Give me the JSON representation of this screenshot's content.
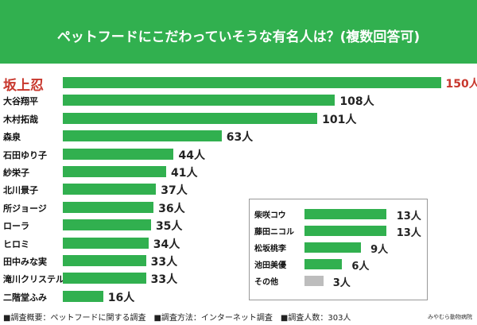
{
  "chart_data": {
    "type": "bar",
    "orientation": "horizontal",
    "title": "ペットフードにこだわっていそうな有名人は？(複数回答可)",
    "unit": "人",
    "categories": [
      "坂上忍",
      "大谷翔平",
      "木村拓哉",
      "森泉",
      "石田ゆり子",
      "紗栄子",
      "北川景子",
      "所ジョージ",
      "ローラ",
      "ヒロミ",
      "田中みな実",
      "滝川クリステル",
      "二階堂ふみ"
    ],
    "values": [
      150,
      108,
      101,
      63,
      44,
      41,
      37,
      36,
      35,
      34,
      33,
      33,
      16
    ],
    "value_labels": [
      "150人",
      "108人",
      "101人",
      "63人",
      "44人",
      "41人",
      "37人",
      "36人",
      "35人",
      "34人",
      "33人",
      "33人",
      "16人"
    ],
    "highlight_index": 0,
    "inset": {
      "categories": [
        "柴咲コウ",
        "藤田ニコル",
        "松坂桃李",
        "池田美優",
        "その他"
      ],
      "values": [
        13,
        13,
        9,
        6,
        3
      ],
      "value_labels": [
        "13人",
        "13人",
        "9人",
        "6人",
        "3人"
      ]
    },
    "colors": {
      "bar": "#31b04f",
      "highlight": "#c8372d",
      "other": "#bdbdbd",
      "header": "#31b04f"
    }
  },
  "footer": {
    "note": "■調査概要：ペットフードに関する調査　■調査方法：インターネット調査　■調査人数：303人",
    "credit": "みやむら動物病院"
  }
}
